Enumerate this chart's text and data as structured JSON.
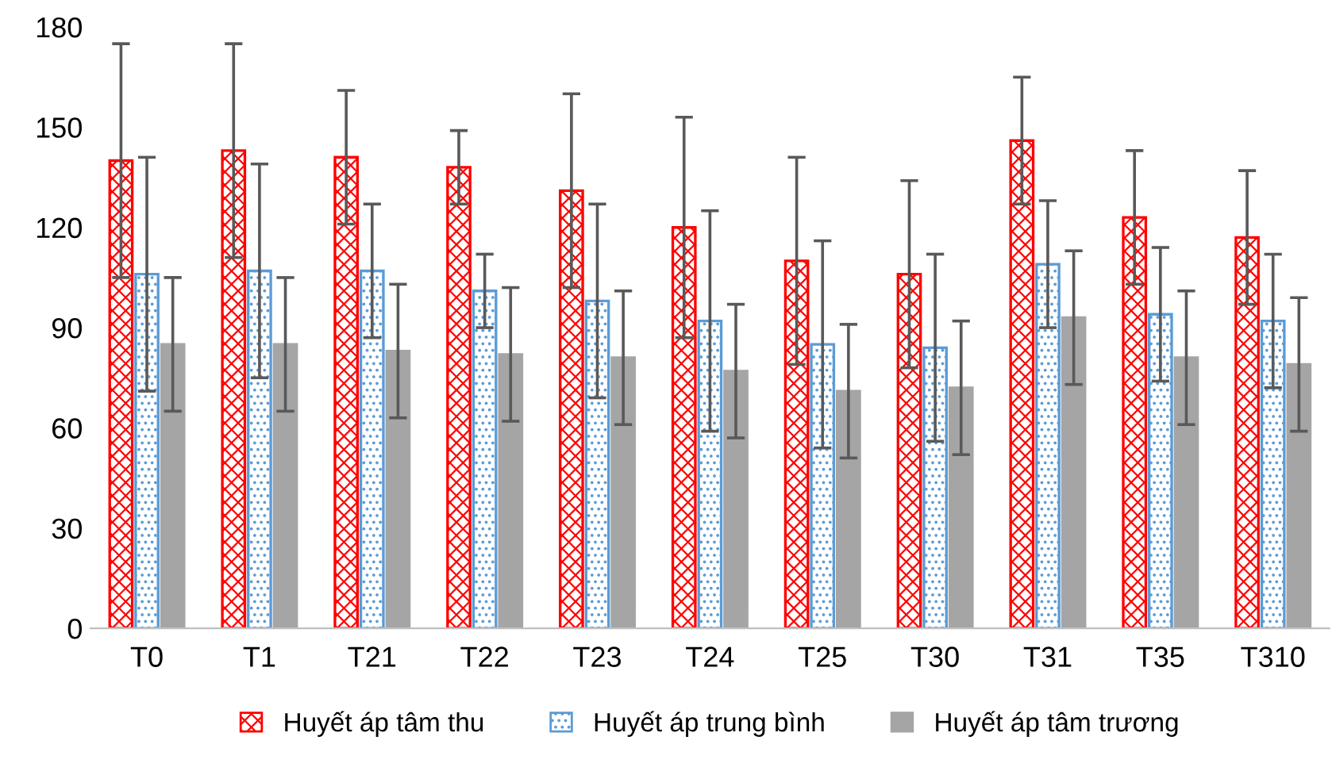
{
  "chart_data": {
    "type": "bar",
    "categories": [
      "T0",
      "T1",
      "T21",
      "T22",
      "T23",
      "T24",
      "T25",
      "T30",
      "T31",
      "T35",
      "T310"
    ],
    "series": [
      {
        "name": "Huyết áp tâm thu",
        "color": "#ff0000",
        "values": [
          140,
          143,
          141,
          138,
          131,
          120,
          110,
          106,
          146,
          123,
          117
        ],
        "errors": [
          [
            105,
            175
          ],
          [
            111,
            175
          ],
          [
            121,
            161
          ],
          [
            127,
            149
          ],
          [
            102,
            160
          ],
          [
            87,
            153
          ],
          [
            79,
            141
          ],
          [
            78,
            134
          ],
          [
            127,
            165
          ],
          [
            103,
            143
          ],
          [
            97,
            137
          ]
        ]
      },
      {
        "name": "Huyết áp trung bình",
        "color": "#5b9bd5",
        "values": [
          106,
          107,
          107,
          101,
          98,
          92,
          85,
          84,
          109,
          94,
          92
        ],
        "errors": [
          [
            71,
            141
          ],
          [
            75,
            139
          ],
          [
            87,
            127
          ],
          [
            90,
            112
          ],
          [
            69,
            127
          ],
          [
            59,
            125
          ],
          [
            54,
            116
          ],
          [
            56,
            112
          ],
          [
            90,
            128
          ],
          [
            74,
            114
          ],
          [
            72,
            112
          ]
        ]
      },
      {
        "name": "Huyết áp tâm trương",
        "color": "#a5a5a5",
        "values": [
          85,
          85,
          83,
          82,
          81,
          77,
          71,
          72,
          93,
          81,
          79
        ],
        "errors": [
          [
            65,
            105
          ],
          [
            65,
            105
          ],
          [
            63,
            103
          ],
          [
            62,
            102
          ],
          [
            61,
            101
          ],
          [
            57,
            97
          ],
          [
            51,
            91
          ],
          [
            52,
            92
          ],
          [
            73,
            113
          ],
          [
            61,
            101
          ],
          [
            59,
            99
          ]
        ]
      }
    ],
    "ylim": [
      0,
      180
    ],
    "yticks": [
      0,
      30,
      60,
      90,
      120,
      150,
      180
    ],
    "grid": false,
    "legend": "bottom"
  }
}
